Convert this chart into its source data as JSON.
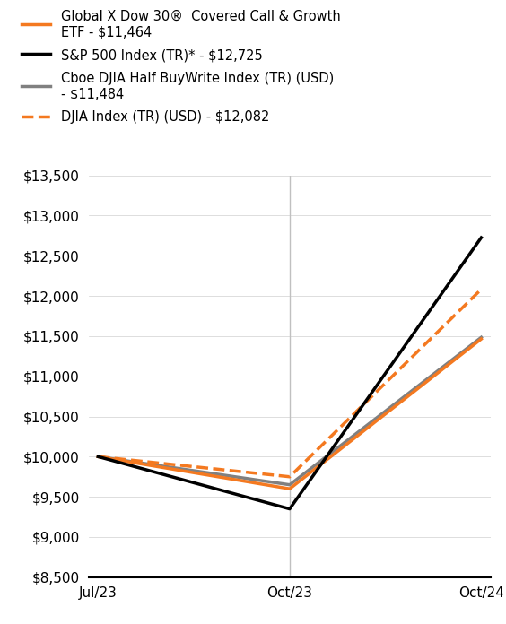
{
  "x_labels": [
    "Jul/23",
    "Oct/23",
    "Oct/24"
  ],
  "x_positions": [
    0,
    1,
    2
  ],
  "series": [
    {
      "name": "Global X Dow 30®  Covered Call & Growth\nETF - $11,464",
      "values": [
        10000,
        9600,
        11464
      ],
      "color": "#F47920",
      "linestyle": "solid",
      "linewidth": 2.5,
      "zorder": 4
    },
    {
      "name": "S&P 500 Index (TR)* - $12,725",
      "values": [
        10000,
        9350,
        12725
      ],
      "color": "#000000",
      "linestyle": "solid",
      "linewidth": 2.5,
      "zorder": 5
    },
    {
      "name": "Cboe DJIA Half BuyWrite Index (TR) (USD)\n- $11,484",
      "values": [
        10000,
        9650,
        11484
      ],
      "color": "#808080",
      "linestyle": "solid",
      "linewidth": 2.5,
      "zorder": 3
    },
    {
      "name": "DJIA Index (TR) (USD) - $12,082",
      "values": [
        10000,
        9750,
        12082
      ],
      "color": "#F47920",
      "linestyle": "dashed",
      "linewidth": 2.5,
      "zorder": 4
    }
  ],
  "ylim": [
    8500,
    13500
  ],
  "yticks": [
    8500,
    9000,
    9500,
    10000,
    10500,
    11000,
    11500,
    12000,
    12500,
    13000,
    13500
  ],
  "background_color": "#ffffff",
  "grid_color": "#d0d0d0",
  "vline_color": "#c0c0c0",
  "legend_fontsize": 10.5,
  "tick_fontsize": 11
}
